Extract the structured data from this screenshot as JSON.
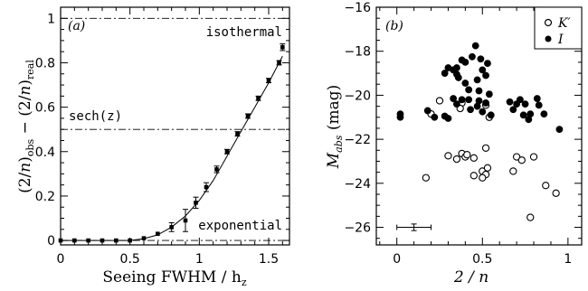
{
  "chart_data": [
    {
      "type": "scatter",
      "panel": "(a)",
      "xlabel_main": "Seeing FWHM / h",
      "xlabel_sub": "z",
      "ylabel": {
        "part1": "(2/",
        "part2": "n",
        "part3": ")",
        "sub1": "obs",
        "part4": " − (2/",
        "part5": "n",
        "part6": ")",
        "sub2": "real"
      },
      "xlim": [
        0,
        1.65
      ],
      "ylim": [
        -0.02,
        1.05
      ],
      "xticks": [
        "0",
        "0.5",
        "1",
        "1.5"
      ],
      "yticks": [
        "0",
        "0.2",
        "0.4",
        "0.6",
        "0.8",
        "1"
      ],
      "reference_lines": [
        {
          "y": 1.0,
          "label": "isothermal"
        },
        {
          "y": 0.5,
          "label": "sech(z)"
        },
        {
          "y": 0.0,
          "label": "exponential"
        }
      ],
      "points": [
        {
          "x": 0.0,
          "y": 0.0,
          "err": 0.0
        },
        {
          "x": 0.1,
          "y": 0.0,
          "err": 0.0
        },
        {
          "x": 0.2,
          "y": 0.0,
          "err": 0.0
        },
        {
          "x": 0.3,
          "y": 0.0,
          "err": 0.0
        },
        {
          "x": 0.4,
          "y": 0.0,
          "err": 0.0
        },
        {
          "x": 0.5,
          "y": 0.0,
          "err": 0.0
        },
        {
          "x": 0.6,
          "y": 0.01,
          "err": 0.0
        },
        {
          "x": 0.7,
          "y": 0.03,
          "err": 0.0
        },
        {
          "x": 0.8,
          "y": 0.06,
          "err": 0.02
        },
        {
          "x": 0.9,
          "y": 0.09,
          "err": 0.05
        },
        {
          "x": 0.975,
          "y": 0.17,
          "err": 0.025
        },
        {
          "x": 1.05,
          "y": 0.24,
          "err": 0.02
        },
        {
          "x": 1.125,
          "y": 0.32,
          "err": 0.015
        },
        {
          "x": 1.2,
          "y": 0.4,
          "err": 0.01
        },
        {
          "x": 1.275,
          "y": 0.48,
          "err": 0.01
        },
        {
          "x": 1.35,
          "y": 0.56,
          "err": 0.01
        },
        {
          "x": 1.425,
          "y": 0.64,
          "err": 0.01
        },
        {
          "x": 1.5,
          "y": 0.72,
          "err": 0.01
        },
        {
          "x": 1.575,
          "y": 0.8,
          "err": 0.01
        },
        {
          "x": 1.6,
          "y": 0.87,
          "err": 0.015
        }
      ],
      "curve": [
        [
          0.0,
          0.0
        ],
        [
          0.5,
          0.0
        ],
        [
          0.6,
          0.008
        ],
        [
          0.7,
          0.025
        ],
        [
          0.8,
          0.06
        ],
        [
          0.9,
          0.11
        ],
        [
          1.0,
          0.18
        ],
        [
          1.1,
          0.27
        ],
        [
          1.2,
          0.38
        ],
        [
          1.3,
          0.49
        ],
        [
          1.4,
          0.6
        ],
        [
          1.5,
          0.71
        ],
        [
          1.6,
          0.83
        ]
      ]
    },
    {
      "type": "scatter",
      "panel": "(b)",
      "xlabel": "2 / n",
      "ylabel": {
        "main": "M",
        "sub": "abs",
        "unit": " (mag)"
      },
      "xlim": [
        -0.12,
        1.08
      ],
      "ylim": [
        -16,
        -26.8
      ],
      "xticks": [
        "0",
        "0.5",
        "1"
      ],
      "yticks": [
        "−16",
        "−18",
        "−20",
        "−22",
        "−24",
        "−26"
      ],
      "legend": {
        "position": "top-right",
        "entries": [
          "K′",
          "I"
        ]
      },
      "series": [
        {
          "name": "K′",
          "marker": "open-circle",
          "points": [
            [
              0.25,
              -20.25
            ],
            [
              0.2,
              -20.85
            ],
            [
              0.38,
              -20.35
            ],
            [
              0.37,
              -20.6
            ],
            [
              0.52,
              -20.45
            ],
            [
              0.54,
              -21.0
            ],
            [
              0.3,
              -22.75
            ],
            [
              0.35,
              -22.9
            ],
            [
              0.38,
              -22.65
            ],
            [
              0.4,
              -22.8
            ],
            [
              0.41,
              -22.7
            ],
            [
              0.45,
              -22.85
            ],
            [
              0.5,
              -23.45
            ],
            [
              0.52,
              -23.6
            ],
            [
              0.53,
              -23.3
            ],
            [
              0.5,
              -23.75
            ],
            [
              0.45,
              -23.65
            ],
            [
              0.52,
              -22.4
            ],
            [
              0.17,
              -23.75
            ],
            [
              0.7,
              -22.8
            ],
            [
              0.73,
              -22.95
            ],
            [
              0.8,
              -22.8
            ],
            [
              0.68,
              -23.45
            ],
            [
              0.78,
              -25.55
            ],
            [
              0.87,
              -24.1
            ],
            [
              0.93,
              -24.45
            ]
          ]
        },
        {
          "name": "I",
          "marker": "filled-circle",
          "points": [
            [
              0.02,
              -20.85
            ],
            [
              0.02,
              -21.0
            ],
            [
              0.18,
              -20.7
            ],
            [
              0.22,
              -21.0
            ],
            [
              0.28,
              -19.0
            ],
            [
              0.3,
              -18.75
            ],
            [
              0.33,
              -18.85
            ],
            [
              0.35,
              -19.05
            ],
            [
              0.35,
              -18.75
            ],
            [
              0.38,
              -18.4
            ],
            [
              0.4,
              -18.5
            ],
            [
              0.44,
              -18.25
            ],
            [
              0.46,
              -17.75
            ],
            [
              0.49,
              -18.35
            ],
            [
              0.5,
              -18.85
            ],
            [
              0.52,
              -19.1
            ],
            [
              0.53,
              -18.55
            ],
            [
              0.36,
              -19.2
            ],
            [
              0.4,
              -19.45
            ],
            [
              0.42,
              -19.75
            ],
            [
              0.48,
              -19.8
            ],
            [
              0.47,
              -19.3
            ],
            [
              0.42,
              -20.2
            ],
            [
              0.47,
              -20.5
            ],
            [
              0.54,
              -19.95
            ],
            [
              0.33,
              -20.15
            ],
            [
              0.35,
              -20.4
            ],
            [
              0.38,
              -20.2
            ],
            [
              0.48,
              -20.25
            ],
            [
              0.43,
              -20.65
            ],
            [
              0.5,
              -20.75
            ],
            [
              0.28,
              -20.95
            ],
            [
              0.3,
              -21.05
            ],
            [
              0.52,
              -20.35
            ],
            [
              0.55,
              -20.9
            ],
            [
              0.66,
              -20.3
            ],
            [
              0.68,
              -20.65
            ],
            [
              0.7,
              -20.4
            ],
            [
              0.72,
              -20.2
            ],
            [
              0.75,
              -20.4
            ],
            [
              0.74,
              -20.9
            ],
            [
              0.77,
              -21.1
            ],
            [
              0.78,
              -20.85
            ],
            [
              0.82,
              -20.15
            ],
            [
              0.83,
              -20.45
            ],
            [
              0.86,
              -20.85
            ],
            [
              0.95,
              -21.55
            ]
          ]
        }
      ],
      "error_bar": {
        "x": 0.1,
        "y": -26.0,
        "xerr": 0.1,
        "yerr": 0.15
      }
    }
  ]
}
